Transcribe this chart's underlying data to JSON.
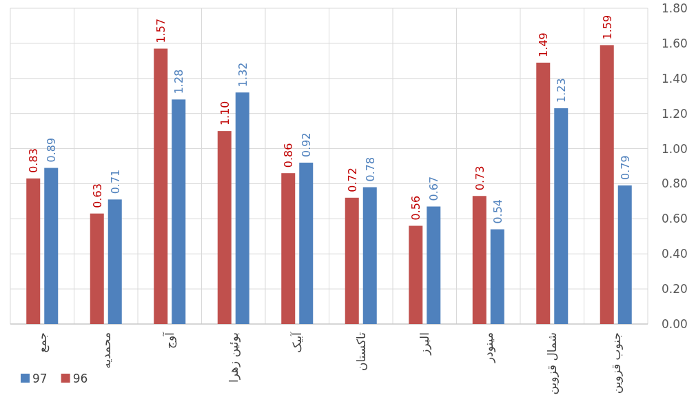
{
  "chart_data": {
    "type": "bar",
    "categories": [
      "جمع",
      "محمدیه",
      "آوج",
      "بوئین زهرا",
      "آبیک",
      "تاکستان",
      "البرز",
      "مینودر",
      "شمال قزوین",
      "جنوب قزوین"
    ],
    "series": [
      {
        "name": "96",
        "color": "#c0504d",
        "values": [
          0.83,
          0.63,
          1.57,
          1.1,
          0.86,
          0.72,
          0.56,
          0.73,
          1.49,
          1.59
        ],
        "value_labels": [
          "0.83",
          "0.63",
          "1.57",
          "1.10",
          "0.86",
          "0.72",
          "0.56",
          "0.73",
          "1.49",
          "1.59"
        ]
      },
      {
        "name": "97",
        "color": "#4f81bd",
        "values": [
          0.89,
          0.71,
          1.28,
          1.32,
          0.92,
          0.78,
          0.67,
          0.54,
          1.23,
          0.79
        ],
        "value_labels": [
          "0.89",
          "0.71",
          "1.28",
          "1.32",
          "0.92",
          "0.78",
          "0.67",
          "0.54",
          "1.23",
          "0.79"
        ]
      }
    ],
    "ylim": [
      0,
      1.8
    ],
    "yticks": [
      {
        "value": 0,
        "label": "0.00"
      },
      {
        "value": 0.2,
        "label": "0.20"
      },
      {
        "value": 0.4,
        "label": "0.40"
      },
      {
        "value": 0.6,
        "label": "0.60"
      },
      {
        "value": 0.8,
        "label": "0.80"
      },
      {
        "value": 1.0,
        "label": "1.00"
      },
      {
        "value": 1.2,
        "label": "1.20"
      },
      {
        "value": 1.4,
        "label": "1.40"
      },
      {
        "value": 1.6,
        "label": "1.60"
      },
      {
        "value": 1.8,
        "label": "1.80"
      }
    ],
    "grid": true,
    "legend": "bottom left"
  }
}
